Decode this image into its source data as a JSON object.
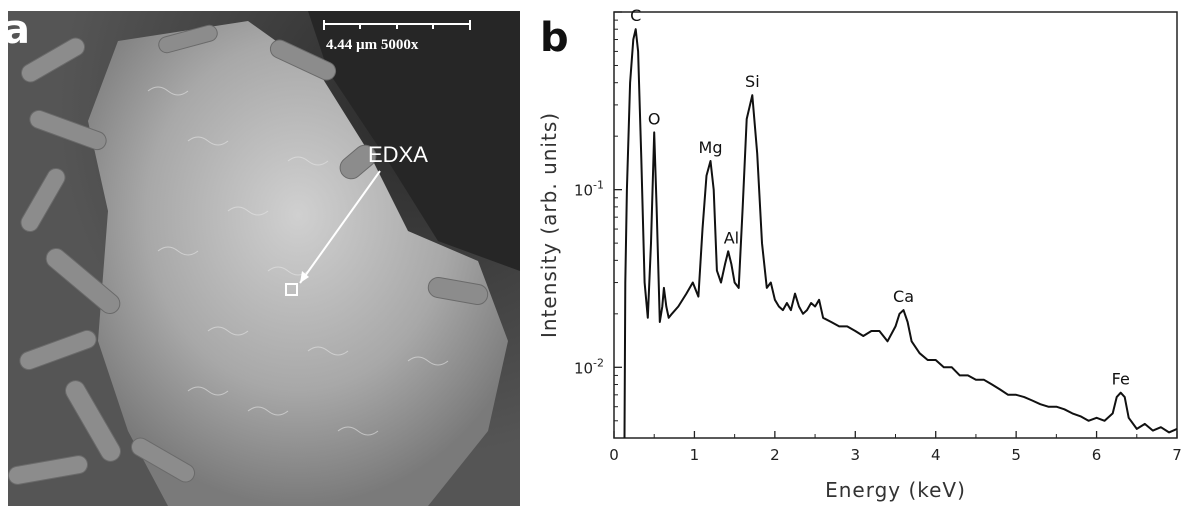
{
  "panel_a": {
    "letter": "a",
    "scale_label": "4.44 µm  5000x",
    "marker_label": "EDXA"
  },
  "panel_b": {
    "letter": "b"
  },
  "chart_data": {
    "type": "line",
    "title": "",
    "xlabel": "Energy (keV)",
    "ylabel": "Intensity (arb. units)",
    "xlim": [
      0,
      7
    ],
    "ylim": [
      0.004,
      1.0
    ],
    "yscale": "log",
    "xticks": [
      0,
      1,
      2,
      3,
      4,
      5,
      6,
      7
    ],
    "yticks": [
      {
        "value": 0.01,
        "base": "10",
        "exp": "-2"
      },
      {
        "value": 0.1,
        "base": "10",
        "exp": "-1"
      }
    ],
    "grid": false,
    "series": [
      {
        "color": "#111111",
        "x": [
          0.13,
          0.14,
          0.16,
          0.2,
          0.24,
          0.27,
          0.3,
          0.34,
          0.38,
          0.42,
          0.46,
          0.5,
          0.53,
          0.57,
          0.6,
          0.62,
          0.65,
          0.68,
          0.72,
          0.8,
          0.9,
          0.98,
          1.05,
          1.1,
          1.15,
          1.2,
          1.24,
          1.28,
          1.33,
          1.38,
          1.42,
          1.46,
          1.5,
          1.55,
          1.6,
          1.65,
          1.72,
          1.78,
          1.84,
          1.9,
          1.95,
          2.0,
          2.05,
          2.1,
          2.15,
          2.2,
          2.25,
          2.3,
          2.35,
          2.4,
          2.45,
          2.5,
          2.55,
          2.6,
          2.7,
          2.8,
          2.9,
          3.0,
          3.1,
          3.2,
          3.3,
          3.4,
          3.5,
          3.55,
          3.6,
          3.65,
          3.7,
          3.8,
          3.9,
          4.0,
          4.1,
          4.2,
          4.3,
          4.4,
          4.5,
          4.6,
          4.7,
          4.8,
          4.9,
          5.0,
          5.1,
          5.2,
          5.3,
          5.4,
          5.5,
          5.6,
          5.7,
          5.8,
          5.9,
          6.0,
          6.1,
          6.2,
          6.25,
          6.3,
          6.35,
          6.4,
          6.5,
          6.6,
          6.7,
          6.8,
          6.9,
          7.0
        ],
        "y": [
          0.004,
          0.03,
          0.1,
          0.4,
          0.7,
          0.8,
          0.6,
          0.15,
          0.03,
          0.019,
          0.05,
          0.21,
          0.08,
          0.018,
          0.022,
          0.028,
          0.022,
          0.019,
          0.02,
          0.022,
          0.026,
          0.03,
          0.025,
          0.06,
          0.12,
          0.145,
          0.1,
          0.035,
          0.03,
          0.038,
          0.045,
          0.038,
          0.03,
          0.028,
          0.08,
          0.25,
          0.34,
          0.16,
          0.05,
          0.028,
          0.03,
          0.024,
          0.022,
          0.021,
          0.023,
          0.021,
          0.026,
          0.022,
          0.02,
          0.021,
          0.023,
          0.022,
          0.024,
          0.019,
          0.018,
          0.017,
          0.017,
          0.016,
          0.015,
          0.016,
          0.016,
          0.014,
          0.017,
          0.02,
          0.021,
          0.018,
          0.014,
          0.012,
          0.011,
          0.011,
          0.01,
          0.01,
          0.009,
          0.009,
          0.0085,
          0.0085,
          0.008,
          0.0075,
          0.007,
          0.007,
          0.0068,
          0.0065,
          0.0062,
          0.006,
          0.006,
          0.0058,
          0.0055,
          0.0053,
          0.005,
          0.0052,
          0.005,
          0.0055,
          0.0068,
          0.0072,
          0.0068,
          0.0052,
          0.0045,
          0.0048,
          0.0044,
          0.0046,
          0.0043,
          0.0045
        ]
      }
    ],
    "annotations": [
      {
        "text": "C",
        "x": 0.27,
        "y": 0.8
      },
      {
        "text": "O",
        "x": 0.5,
        "y": 0.21
      },
      {
        "text": "Mg",
        "x": 1.2,
        "y": 0.145
      },
      {
        "text": "Al",
        "x": 1.46,
        "y": 0.045
      },
      {
        "text": "Si",
        "x": 1.72,
        "y": 0.34
      },
      {
        "text": "Ca",
        "x": 3.6,
        "y": 0.021
      },
      {
        "text": "Fe",
        "x": 6.3,
        "y": 0.0072
      }
    ]
  }
}
